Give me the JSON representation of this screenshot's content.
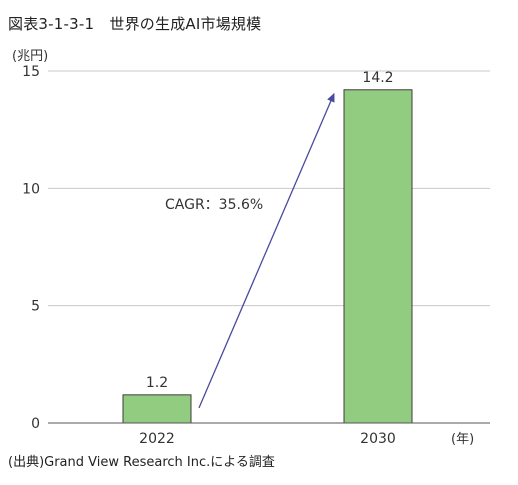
{
  "figure_title": "図表3-1-3-1　世界の生成AI市場規模",
  "source_note": "(出典)Grand View Research Inc.による調査",
  "chart_data": {
    "type": "bar",
    "categories": [
      "2022",
      "2030"
    ],
    "values": [
      1.2,
      14.2
    ],
    "data_labels": [
      "1.2",
      "14.2"
    ],
    "y_unit_label": "(兆円)",
    "x_unit_label": "(年)",
    "ylim": [
      0,
      15
    ],
    "yticks": [
      0,
      5,
      10,
      15
    ],
    "grid": "horizontal",
    "bar_color": "#92cc80",
    "bar_edge_color": "#3c3c3c",
    "annotation": "CAGR：35.6%",
    "arrow_color": "#4a4aa0"
  }
}
